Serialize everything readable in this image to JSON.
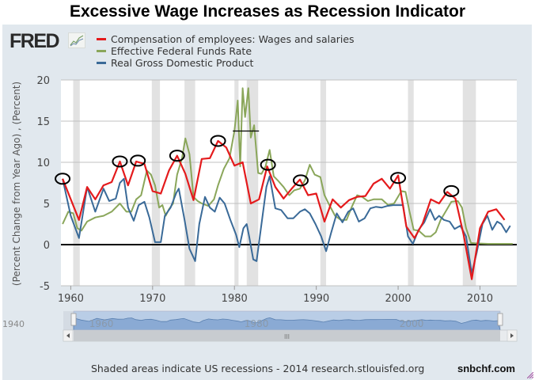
{
  "title": "Excessive Wage Increases as Recession Indicator",
  "logo": {
    "text": "FRED",
    "icon": "sparkline-chart-icon"
  },
  "legend": [
    {
      "label": "Compensation of employees: Wages and salaries",
      "color": "#e41a1c"
    },
    {
      "label": "Effective Federal Funds Rate",
      "color": "#8aa65a"
    },
    {
      "label": "Real Gross Domestic Product",
      "color": "#3a6a98"
    }
  ],
  "footer": "Shaded areas indicate US recessions - 2014 research.stlouisfed.org",
  "brand": "snbchf.com",
  "navigator": {
    "left_label": "1940",
    "tick_labels": [
      "1960",
      "1980",
      "2000"
    ],
    "scroll_grip": "III"
  },
  "chart_data": {
    "type": "line",
    "title": "Excessive Wage Increases as Recession Indicator",
    "xlabel": "",
    "ylabel": "(Percent Change from Year Ago) , (Percent)",
    "xlim": [
      1958.8,
      2014.5
    ],
    "ylim": [
      -5,
      20
    ],
    "x_ticks": [
      1960,
      1970,
      1980,
      1990,
      2000,
      2010
    ],
    "x_tick_labels": [
      "1960",
      "1970",
      "1980",
      "1990",
      "2000",
      "2010"
    ],
    "y_ticks": [
      -5,
      0,
      5,
      10,
      15,
      20
    ],
    "y_tick_labels": [
      "-5",
      "0",
      "5",
      "10",
      "15",
      "20"
    ],
    "grid": true,
    "legend_position": "top-left",
    "zero_line": true,
    "recessions": [
      [
        1960.3,
        1961.1
      ],
      [
        1969.9,
        1970.9
      ],
      [
        1973.9,
        1975.2
      ],
      [
        1980.0,
        1980.5
      ],
      [
        1981.5,
        1982.9
      ],
      [
        1990.5,
        1991.2
      ],
      [
        2001.2,
        2001.9
      ],
      [
        2007.9,
        2009.5
      ]
    ],
    "series": [
      {
        "name": "Compensation of employees: Wages and salaries",
        "color": "#e41a1c",
        "x": [
          1959.0,
          1961.0,
          1962.0,
          1963.0,
          1964.0,
          1965.0,
          1966.0,
          1967.0,
          1968.0,
          1969.0,
          1970.0,
          1971.0,
          1972.0,
          1973.0,
          1974.0,
          1975.0,
          1976.0,
          1977.0,
          1978.0,
          1979.0,
          1980.0,
          1981.0,
          1982.0,
          1983.0,
          1984.0,
          1985.0,
          1986.0,
          1987.0,
          1988.0,
          1989.0,
          1990.0,
          1991.0,
          1992.0,
          1993.0,
          1994.0,
          1995.0,
          1996.0,
          1997.0,
          1998.0,
          1999.0,
          2000.0,
          2001.0,
          2002.0,
          2003.0,
          2004.0,
          2005.0,
          2006.0,
          2007.0,
          2008.0,
          2009.0,
          2010.0,
          2011.0,
          2012.0,
          2013.0
        ],
        "values": [
          8.0,
          3.0,
          7.0,
          5.5,
          7.2,
          7.6,
          10.1,
          7.2,
          10.1,
          9.8,
          6.5,
          6.2,
          9.0,
          10.8,
          8.6,
          5.4,
          10.4,
          10.5,
          12.6,
          11.8,
          9.6,
          10.0,
          5.0,
          5.5,
          9.5,
          7.0,
          5.6,
          6.8,
          7.9,
          6.0,
          6.2,
          2.8,
          5.5,
          4.5,
          5.4,
          5.8,
          5.9,
          7.4,
          8.0,
          6.8,
          8.4,
          2.2,
          0.8,
          2.6,
          5.5,
          5.0,
          6.4,
          5.6,
          1.2,
          -4.2,
          2.0,
          4.0,
          4.3,
          3.0
        ]
      },
      {
        "name": "Effective Federal Funds Rate",
        "color": "#8aa65a",
        "x": [
          1959.0,
          1959.7,
          1960.3,
          1960.8,
          1961.3,
          1962.0,
          1963.0,
          1964.0,
          1965.0,
          1966.0,
          1966.8,
          1967.4,
          1968.0,
          1968.6,
          1969.3,
          1969.8,
          1970.3,
          1970.8,
          1971.2,
          1971.6,
          1972.0,
          1972.5,
          1973.0,
          1973.6,
          1974.0,
          1974.5,
          1975.0,
          1975.5,
          1976.0,
          1976.8,
          1977.5,
          1978.0,
          1978.7,
          1979.4,
          1980.0,
          1980.4,
          1980.7,
          1981.0,
          1981.3,
          1981.7,
          1982.0,
          1982.4,
          1982.9,
          1983.3,
          1983.8,
          1984.3,
          1984.8,
          1985.3,
          1986.0,
          1986.7,
          1987.3,
          1988.0,
          1988.6,
          1989.2,
          1989.8,
          1990.5,
          1991.0,
          1991.6,
          1992.3,
          1993.0,
          1993.7,
          1994.3,
          1995.0,
          1995.6,
          1996.3,
          1997.0,
          1998.0,
          1998.8,
          1999.5,
          2000.4,
          2000.9,
          2001.4,
          2001.9,
          2002.5,
          2003.3,
          2004.0,
          2004.6,
          2005.2,
          2005.8,
          2006.5,
          2007.3,
          2007.8,
          2008.3,
          2008.9,
          2009.5,
          2011.0,
          2013.0,
          2014.0
        ],
        "values": [
          2.5,
          4.0,
          3.8,
          2.0,
          1.7,
          2.8,
          3.3,
          3.5,
          4.0,
          5.0,
          4.0,
          4.0,
          5.5,
          6.0,
          9.0,
          8.5,
          7.2,
          4.5,
          4.8,
          3.5,
          4.3,
          5.0,
          8.5,
          10.5,
          12.9,
          11.0,
          5.8,
          5.3,
          5.0,
          4.7,
          5.5,
          7.2,
          9.2,
          10.5,
          13.8,
          17.5,
          9.5,
          19.0,
          15.5,
          19.0,
          13.0,
          14.5,
          8.7,
          8.6,
          9.5,
          11.5,
          8.3,
          7.8,
          7.0,
          6.0,
          6.6,
          6.8,
          7.8,
          9.7,
          8.5,
          8.2,
          6.0,
          4.8,
          3.5,
          3.0,
          3.0,
          4.5,
          6.0,
          5.8,
          5.3,
          5.5,
          5.5,
          4.8,
          5.0,
          6.5,
          6.4,
          4.0,
          1.8,
          1.7,
          1.0,
          1.0,
          1.5,
          3.0,
          4.0,
          5.2,
          5.3,
          4.5,
          2.0,
          0.2,
          0.15,
          0.1,
          0.1,
          0.1
        ]
      },
      {
        "name": "Real Gross Domestic Product",
        "color": "#3a6a98",
        "x": [
          1959.0,
          1960.0,
          1961.0,
          1962.0,
          1963.0,
          1964.0,
          1964.7,
          1965.5,
          1966.0,
          1966.5,
          1967.0,
          1967.7,
          1968.3,
          1969.0,
          1969.6,
          1970.3,
          1971.0,
          1971.5,
          1972.2,
          1972.9,
          1973.2,
          1973.9,
          1974.5,
          1975.2,
          1975.7,
          1976.4,
          1977.0,
          1977.6,
          1978.2,
          1978.8,
          1979.5,
          1980.2,
          1980.6,
          1981.1,
          1981.5,
          1981.8,
          1982.3,
          1982.7,
          1983.3,
          1983.9,
          1984.3,
          1985.0,
          1985.7,
          1986.5,
          1987.2,
          1988.0,
          1988.6,
          1989.2,
          1989.9,
          1990.6,
          1991.2,
          1991.8,
          1992.5,
          1993.2,
          1993.9,
          1994.5,
          1995.2,
          1995.9,
          1996.6,
          1997.3,
          1998.0,
          1998.7,
          1999.4,
          2000.1,
          2000.6,
          2001.2,
          2001.8,
          2002.5,
          2003.2,
          2003.9,
          2004.5,
          2005.0,
          2005.6,
          2006.3,
          2006.9,
          2007.6,
          2008.3,
          2009.0,
          2009.6,
          2010.3,
          2010.9,
          2011.5,
          2012.1,
          2012.6,
          2013.2,
          2013.7
        ],
        "values": [
          8.0,
          3.5,
          0.8,
          7.0,
          4.0,
          6.8,
          5.3,
          5.6,
          7.5,
          8.0,
          4.5,
          2.9,
          4.8,
          5.2,
          3.3,
          0.3,
          0.3,
          3.5,
          4.5,
          6.3,
          6.8,
          3.0,
          -0.5,
          -2.0,
          2.5,
          5.8,
          4.5,
          4.0,
          5.7,
          5.0,
          3.0,
          1.2,
          -0.3,
          2.0,
          2.5,
          1.0,
          -1.8,
          -2.0,
          2.5,
          7.0,
          8.3,
          4.4,
          4.2,
          3.2,
          3.2,
          4.0,
          4.3,
          3.8,
          2.5,
          1.0,
          -0.8,
          1.4,
          3.8,
          2.7,
          4.0,
          4.4,
          2.8,
          3.2,
          4.4,
          4.6,
          4.5,
          4.7,
          4.8,
          4.8,
          4.8,
          1.0,
          0.1,
          1.8,
          2.7,
          4.3,
          3.0,
          3.5,
          3.0,
          2.8,
          1.9,
          2.3,
          1.0,
          -3.5,
          -1.0,
          2.5,
          3.5,
          1.8,
          2.8,
          2.5,
          1.5,
          2.3
        ]
      }
    ],
    "annotations": [
      {
        "type": "ellipse",
        "x": 1959.0,
        "y": 8.0
      },
      {
        "type": "ellipse",
        "x": 1966.0,
        "y": 10.1
      },
      {
        "type": "ellipse",
        "x": 1968.2,
        "y": 10.2
      },
      {
        "type": "ellipse",
        "x": 1973.0,
        "y": 10.8
      },
      {
        "type": "ellipse",
        "x": 1978.0,
        "y": 12.6
      },
      {
        "type": "ellipse",
        "x": 1984.1,
        "y": 9.7
      },
      {
        "type": "ellipse",
        "x": 1988.1,
        "y": 7.8
      },
      {
        "type": "ellipse",
        "x": 2000.0,
        "y": 8.1
      },
      {
        "type": "ellipse",
        "x": 2006.5,
        "y": 6.5
      },
      {
        "type": "hline",
        "x": [
          1979.8,
          1983.0
        ],
        "y": 13.8
      }
    ]
  }
}
